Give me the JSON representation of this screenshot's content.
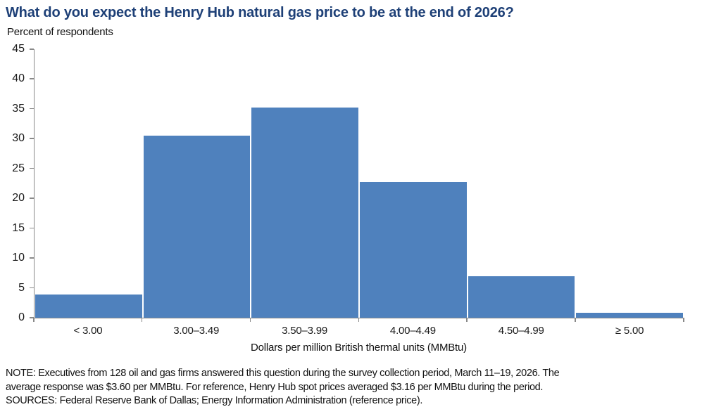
{
  "chart_data": {
    "type": "bar",
    "title": "What do you expect the Henry Hub natural gas price to be at the end of 2026?",
    "ylabel": "Percent of respondents",
    "xlabel": "Dollars per million British thermal units (MMBtu)",
    "categories": [
      "< 3.00",
      "3.00–3.49",
      "3.50–3.99",
      "4.00–4.49",
      "4.50–4.99",
      "≥ 5.00"
    ],
    "values": [
      3.9,
      30.5,
      35.2,
      22.7,
      7.0,
      0.8
    ],
    "ylim": [
      0,
      45
    ],
    "ytick_step": 5,
    "grid": false,
    "legend": "none",
    "bar_color": "#4F81BD",
    "axis_color": "#898989",
    "title_color": "#1E4077"
  },
  "footer": {
    "note_lines": [
      "NOTE: Executives from 128 oil and gas firms answered this question during the survey collection period, March 11–19, 2026. The",
      "average response was $3.60 per MMBtu. For reference, Henry Hub spot prices averaged $3.16 per MMBtu during the period.",
      "SOURCES: Federal Reserve Bank of Dallas; Energy Information Administration (reference price)."
    ]
  }
}
